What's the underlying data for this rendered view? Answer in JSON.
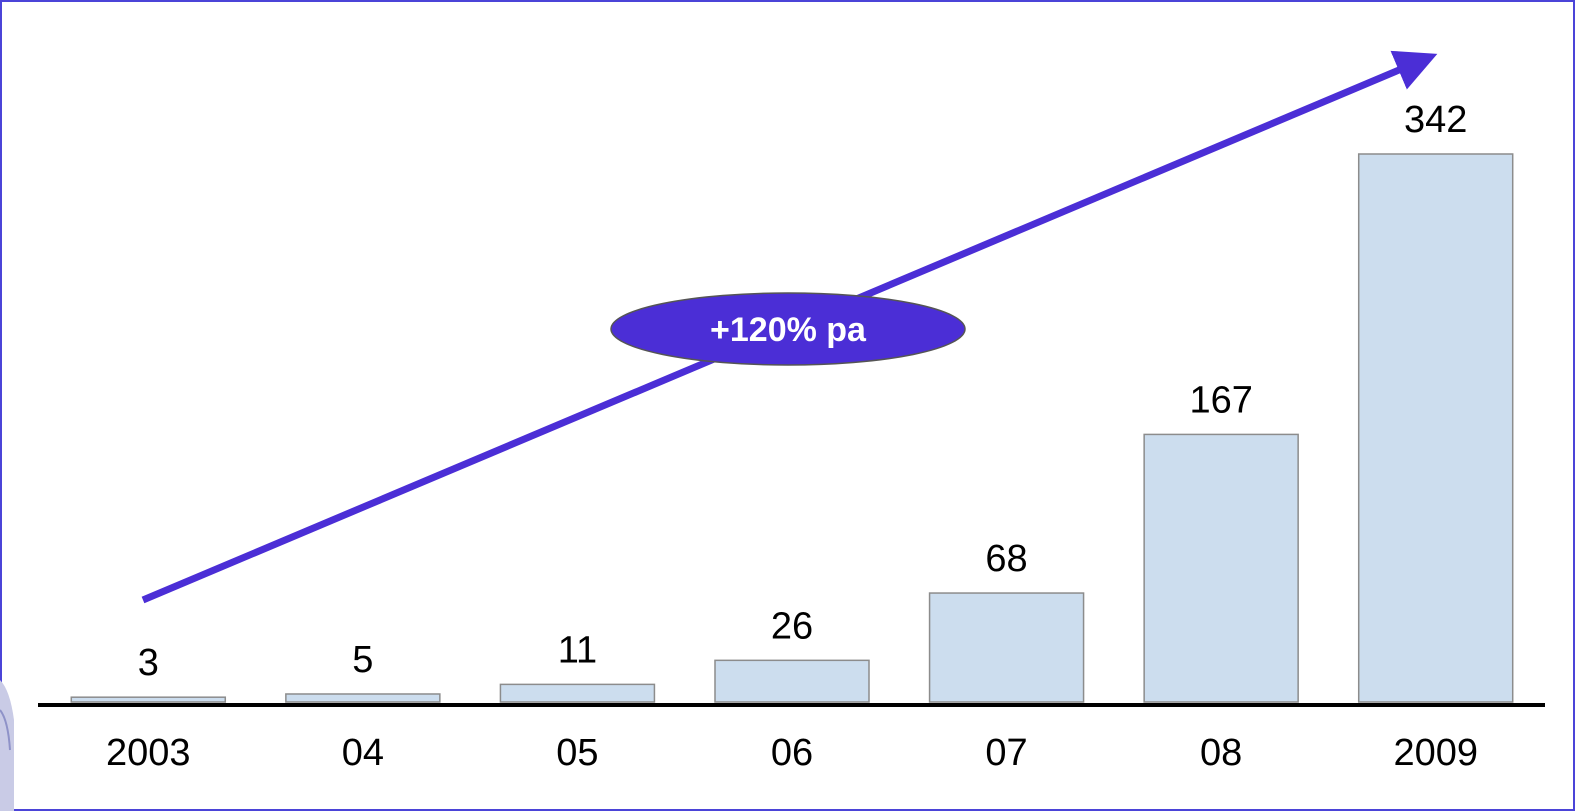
{
  "chart_data": {
    "type": "bar",
    "title": "",
    "xlabel": "",
    "ylabel": "",
    "categories": [
      "2003",
      "04",
      "05",
      "06",
      "07",
      "08",
      "2009"
    ],
    "values": [
      3,
      5,
      11,
      26,
      68,
      167,
      342
    ],
    "value_labels": [
      "3",
      "5",
      "11",
      "26",
      "68",
      "167",
      "342"
    ],
    "ylim": [
      0,
      342
    ],
    "grid": false,
    "legend": "none",
    "bar_color": "#CCDDEE",
    "bar_border_color": "#8C8C8C",
    "axis_color": "#000000",
    "annotation": {
      "text": "+120% pa",
      "arrow_color": "#4B2ED6",
      "ellipse_color": "#4B2ED6",
      "text_color": "#FFFFFF"
    }
  }
}
